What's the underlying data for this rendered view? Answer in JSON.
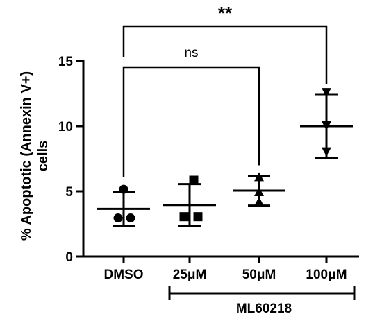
{
  "chart_data": {
    "type": "scatter",
    "ylabel_line1": "% Apoptotic (Annexin V+)",
    "ylabel_line2": "cells",
    "ylim": [
      0,
      15
    ],
    "yticks": [
      0,
      5,
      10,
      15
    ],
    "categories": [
      "DMSO",
      "25μM",
      "50μM",
      "100μM"
    ],
    "group_label": "ML60218",
    "groups": [
      {
        "category": "DMSO",
        "marker": "circle",
        "points": [
          5.15,
          2.95,
          2.95
        ],
        "mean": 3.65,
        "sd_low": 2.35,
        "sd_high": 4.95
      },
      {
        "category": "25μM",
        "marker": "square",
        "points": [
          5.85,
          3.05,
          3.05
        ],
        "mean": 3.95,
        "sd_low": 2.35,
        "sd_high": 5.55
      },
      {
        "category": "50μM",
        "marker": "triangle-up",
        "points": [
          6.1,
          4.95,
          4.2
        ],
        "mean": 5.05,
        "sd_low": 3.9,
        "sd_high": 6.2
      },
      {
        "category": "100μM",
        "marker": "triangle-down",
        "points": [
          12.6,
          10.05,
          8.05
        ],
        "mean": 10.0,
        "sd_low": 7.55,
        "sd_high": 12.45
      }
    ],
    "comparisons": [
      {
        "from": "DMSO",
        "to": "50μM",
        "label": "ns"
      },
      {
        "from": "DMSO",
        "to": "100μM",
        "label": "**"
      }
    ]
  }
}
